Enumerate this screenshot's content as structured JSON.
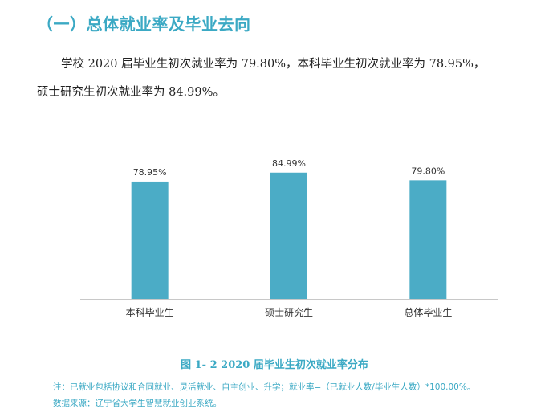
{
  "section_title": "（一）总体就业率及毕业去向",
  "paragraph": {
    "line1": "学校 2020 届毕业生初次就业率为 79.80%，本科毕业生初次就业率为 78.95%，",
    "line2": "硕士研究生初次就业率为 84.99%。"
  },
  "chart_data": {
    "type": "bar",
    "categories": [
      "本科毕业生",
      "硕士研究生",
      "总体毕业生"
    ],
    "values": [
      78.95,
      84.99,
      79.8
    ],
    "value_labels": [
      "78.95%",
      "84.99%",
      "79.80%"
    ],
    "ylim": [
      0,
      100
    ],
    "grid": false,
    "bar_color": "#4bacc6"
  },
  "figure_caption": "图 1- 2    2020 届毕业生初次就业率分布",
  "notes": {
    "note": "注：已就业包括协议和合同就业、灵活就业、自主创业、升学；就业率=（已就业人数/毕业生人数）*100.00%。",
    "source": "数据来源：辽宁省大学生智慧就业创业系统。"
  },
  "colors": {
    "accent": "#3ba9c4",
    "bar": "#4bacc6",
    "axis": "#c8c8c8"
  }
}
